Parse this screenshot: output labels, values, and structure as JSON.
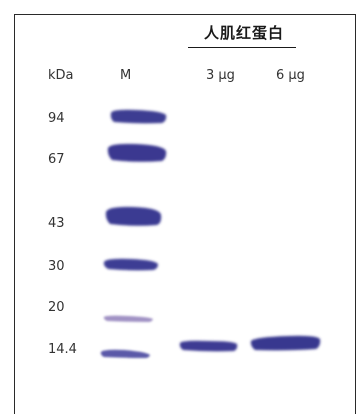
{
  "title": "人肌红蛋白",
  "headers": {
    "kda": "kDa",
    "marker": "M",
    "lane1": "3 μg",
    "lane2": "6 μg"
  },
  "mw_labels": [
    "94",
    "67",
    "43",
    "30",
    "20",
    "14.4"
  ],
  "colors": {
    "band_dark": "#3f3f94",
    "band_light": "#9a8cc0",
    "frame": "#2a2a2a"
  }
}
